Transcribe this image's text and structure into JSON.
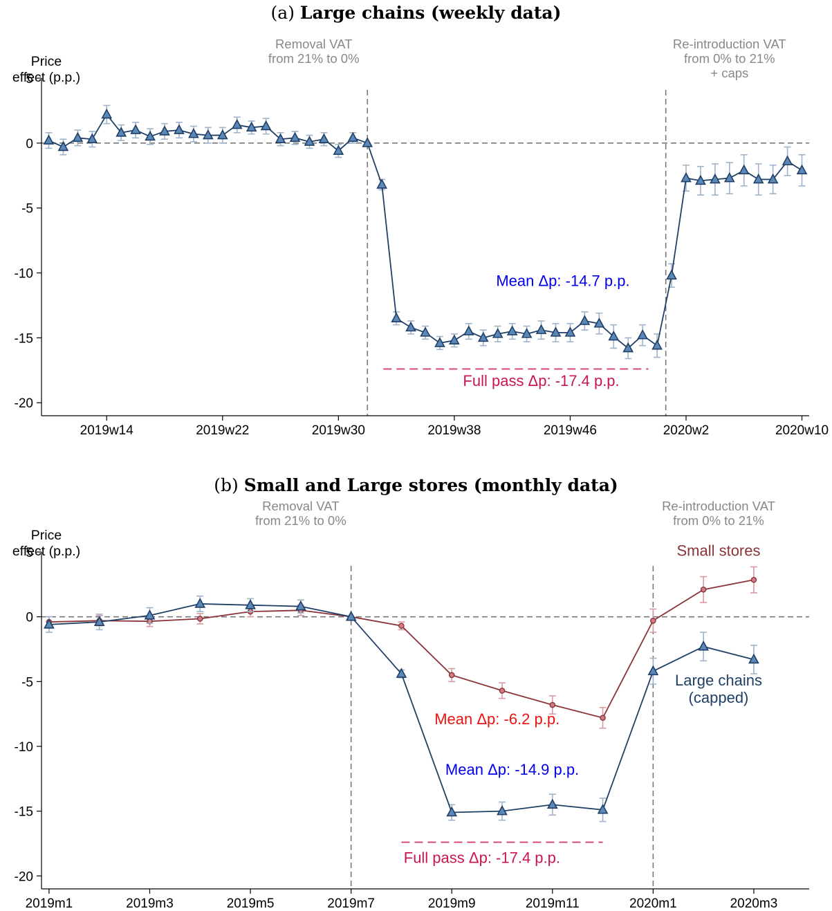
{
  "chart_data": [
    {
      "type": "line",
      "title_prefix": "(a)",
      "title": "Large chains (weekly data)",
      "ylabel": "Price\neffect (p.p.)",
      "ylim": [
        -21,
        5
      ],
      "yticks": [
        5,
        0,
        -5,
        -10,
        -15,
        -20
      ],
      "xticks": [
        {
          "label": "2019w14",
          "x": 14
        },
        {
          "label": "2019w22",
          "x": 22
        },
        {
          "label": "2019w30",
          "x": 30
        },
        {
          "label": "2019w38",
          "x": 38
        },
        {
          "label": "2019w46",
          "x": 46
        },
        {
          "label": "2020w2",
          "x": 54
        },
        {
          "label": "2020w10",
          "x": 62
        }
      ],
      "xlim": [
        9.5,
        62.5
      ],
      "vlines": [
        32,
        52.6
      ],
      "annotations": [
        {
          "text": "Removal VAT\nfrom 21% to 0%",
          "x": 28.3,
          "y": 7.3,
          "color": "#888888"
        },
        {
          "text": "Re-introduction VAT\nfrom 0% to 21%\n+ caps",
          "x": 57,
          "y": 7.3,
          "color": "#888888"
        },
        {
          "text": "Mean Δp: -14.7 p.p.",
          "x": 45.5,
          "y": -11,
          "color": "#0000ee"
        },
        {
          "text": "Full pass Δp: -17.4 p.p.",
          "x": 44,
          "y": -18.7,
          "color": "#c8174d"
        }
      ],
      "full_pass": {
        "value": -17.4,
        "x_start": 33.1,
        "x_end": 51.4
      },
      "series": [
        {
          "name": "Large chains",
          "color": "#1f3f66",
          "marker": "triangle",
          "x": [
            10,
            11,
            12,
            13,
            14,
            15,
            16,
            17,
            18,
            19,
            20,
            21,
            22,
            23,
            24,
            25,
            26,
            27,
            28,
            29,
            30,
            31,
            32,
            33,
            34,
            35,
            36,
            37,
            38,
            39,
            40,
            41,
            42,
            43,
            44,
            45,
            46,
            47,
            48,
            49,
            50,
            51,
            52,
            53,
            54,
            55,
            56,
            57,
            58,
            59,
            60,
            61,
            62
          ],
          "values": [
            0.2,
            -0.3,
            0.4,
            0.3,
            2.2,
            0.8,
            1.0,
            0.5,
            0.9,
            1.0,
            0.7,
            0.6,
            0.6,
            1.4,
            1.2,
            1.3,
            0.3,
            0.4,
            0.1,
            0.3,
            -0.6,
            0.4,
            0.0,
            -3.2,
            -13.5,
            -14.2,
            -14.6,
            -15.4,
            -15.2,
            -14.5,
            -15.0,
            -14.7,
            -14.5,
            -14.7,
            -14.4,
            -14.6,
            -14.6,
            -13.7,
            -13.9,
            -14.9,
            -15.8,
            -14.8,
            -15.6,
            -10.2,
            -2.7,
            -2.9,
            -2.8,
            -2.7,
            -2.1,
            -2.8,
            -2.8,
            -1.4,
            -2.1
          ],
          "errors": [
            0.6,
            0.6,
            0.6,
            0.6,
            0.7,
            0.6,
            0.6,
            0.6,
            0.6,
            0.6,
            0.6,
            0.6,
            0.6,
            0.6,
            0.5,
            0.6,
            0.5,
            0.5,
            0.5,
            0.5,
            0.5,
            0.4,
            0.0,
            0.4,
            0.5,
            0.5,
            0.5,
            0.5,
            0.5,
            0.6,
            0.6,
            0.6,
            0.6,
            0.6,
            0.7,
            0.7,
            0.7,
            0.7,
            0.8,
            0.9,
            0.8,
            0.8,
            0.9,
            0.9,
            1.0,
            1.1,
            1.2,
            1.2,
            1.2,
            1.2,
            1.1,
            1.1,
            1.2
          ]
        }
      ]
    },
    {
      "type": "line",
      "title_prefix": "(b)",
      "title": "Small and Large stores (monthly data)",
      "ylabel": "Price\neffect (p.p.)",
      "ylim": [
        -21,
        5
      ],
      "yticks": [
        5,
        0,
        -5,
        -10,
        -15,
        -20
      ],
      "xticks": [
        {
          "label": "2019m1",
          "x": 0
        },
        {
          "label": "2019m3",
          "x": 2
        },
        {
          "label": "2019m5",
          "x": 4
        },
        {
          "label": "2019m7",
          "x": 6
        },
        {
          "label": "2019m9",
          "x": 8
        },
        {
          "label": "2019m11",
          "x": 10
        },
        {
          "label": "2020m1",
          "x": 12
        },
        {
          "label": "2020m3",
          "x": 14
        }
      ],
      "xlim": [
        -0.15,
        15.1
      ],
      "vlines": [
        6,
        12
      ],
      "annotations": [
        {
          "text": "Removal VAT\nfrom 21% to 0%",
          "x": 5.0,
          "y": 8.2,
          "color": "#888888"
        },
        {
          "text": "Re-introduction VAT\nfrom 0% to 21%",
          "x": 13.3,
          "y": 8.2,
          "color": "#888888"
        },
        {
          "text": "Small stores",
          "x": 13.3,
          "y": 4.7,
          "color": "#8b3339"
        },
        {
          "text": "Large chains\n(capped)",
          "x": 13.3,
          "y": -5.3,
          "color": "#1f3f66"
        },
        {
          "text": "Mean Δp: -6.2 p.p.",
          "x": 8.9,
          "y": -8.3,
          "color": "#ee1111"
        },
        {
          "text": "Mean Δp: -14.9 p.p.",
          "x": 9.2,
          "y": -12.2,
          "color": "#0000ee"
        },
        {
          "text": "Full pass Δp: -17.4 p.p.",
          "x": 8.6,
          "y": -19.0,
          "color": "#c8174d"
        }
      ],
      "full_pass": {
        "value": -17.4,
        "x_start": 7.0,
        "x_end": 11.0
      },
      "series": [
        {
          "name": "Small stores",
          "color": "#8b3339",
          "marker": "circle",
          "x": [
            0,
            1,
            2,
            3,
            4,
            5,
            6,
            7,
            8,
            9,
            10,
            11,
            12,
            13,
            14
          ],
          "values": [
            -0.4,
            -0.3,
            -0.35,
            -0.15,
            0.4,
            0.5,
            0.0,
            -0.7,
            -4.5,
            -5.7,
            -6.8,
            -7.8,
            -0.3,
            2.1,
            2.85
          ],
          "errors": [
            0.4,
            0.4,
            0.4,
            0.4,
            0.4,
            0.4,
            0.0,
            0.3,
            0.5,
            0.6,
            0.7,
            0.8,
            0.9,
            1.0,
            1.0
          ]
        },
        {
          "name": "Large chains (capped)",
          "color": "#1f3f66",
          "marker": "triangle",
          "x": [
            0,
            1,
            2,
            3,
            4,
            5,
            6,
            7,
            8,
            9,
            10,
            11,
            12,
            13,
            14
          ],
          "values": [
            -0.6,
            -0.4,
            0.1,
            1.0,
            0.9,
            0.8,
            0.0,
            -4.4,
            -15.1,
            -15.0,
            -14.5,
            -14.9,
            -4.2,
            -2.3,
            -3.3
          ],
          "errors": [
            0.6,
            0.6,
            0.6,
            0.6,
            0.5,
            0.5,
            0.0,
            0.3,
            0.6,
            0.7,
            0.8,
            0.9,
            1.0,
            1.1,
            1.1
          ]
        }
      ]
    }
  ]
}
